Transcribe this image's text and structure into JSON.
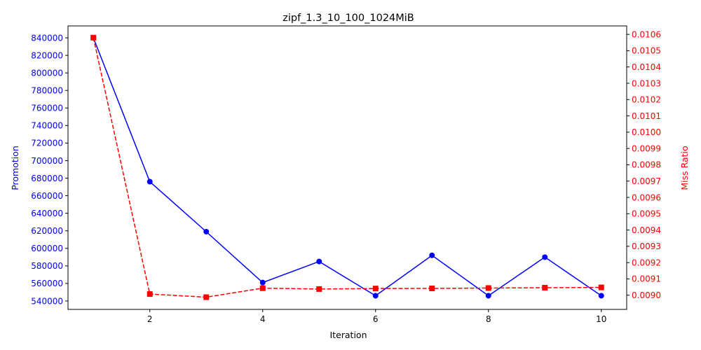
{
  "chart_data": {
    "type": "line",
    "title": "zipf_1.3_10_100_1024MiB",
    "xlabel": "Iteration",
    "x": [
      1,
      2,
      3,
      4,
      5,
      6,
      7,
      8,
      9,
      10
    ],
    "xlim": [
      0.55,
      10.45
    ],
    "xticks": [
      2,
      4,
      6,
      8,
      10
    ],
    "series": [
      {
        "name": "Promotion",
        "axis": "left",
        "color": "#0000ff",
        "marker": "circle",
        "line_style": "solid",
        "values": [
          840000,
          676000,
          619000,
          561000,
          585000,
          546000,
          592000,
          546000,
          590000,
          546000
        ]
      },
      {
        "name": "Miss Ratio",
        "axis": "right",
        "color": "#ff0000",
        "marker": "square",
        "line_style": "dashed",
        "values": [
          0.01058,
          0.009007,
          0.008988,
          0.009043,
          0.009038,
          0.009041,
          0.009042,
          0.009044,
          0.009046,
          0.009048
        ]
      }
    ],
    "y_left": {
      "label": "Promotion",
      "lim": [
        530400,
        853600
      ],
      "ticks": [
        540000,
        560000,
        580000,
        600000,
        620000,
        640000,
        660000,
        680000,
        700000,
        720000,
        740000,
        760000,
        780000,
        800000,
        820000,
        840000
      ]
    },
    "y_right": {
      "label": "Miss Ratio",
      "lim": [
        0.008913,
        0.010652
      ],
      "ticks": [
        "0.0090",
        "0.0091",
        "0.0092",
        "0.0093",
        "0.0094",
        "0.0095",
        "0.0096",
        "0.0097",
        "0.0098",
        "0.0099",
        "0.0100",
        "0.0101",
        "0.0102",
        "0.0103",
        "0.0104",
        "0.0105",
        "0.0106"
      ]
    },
    "grid": false,
    "legend": "none"
  }
}
